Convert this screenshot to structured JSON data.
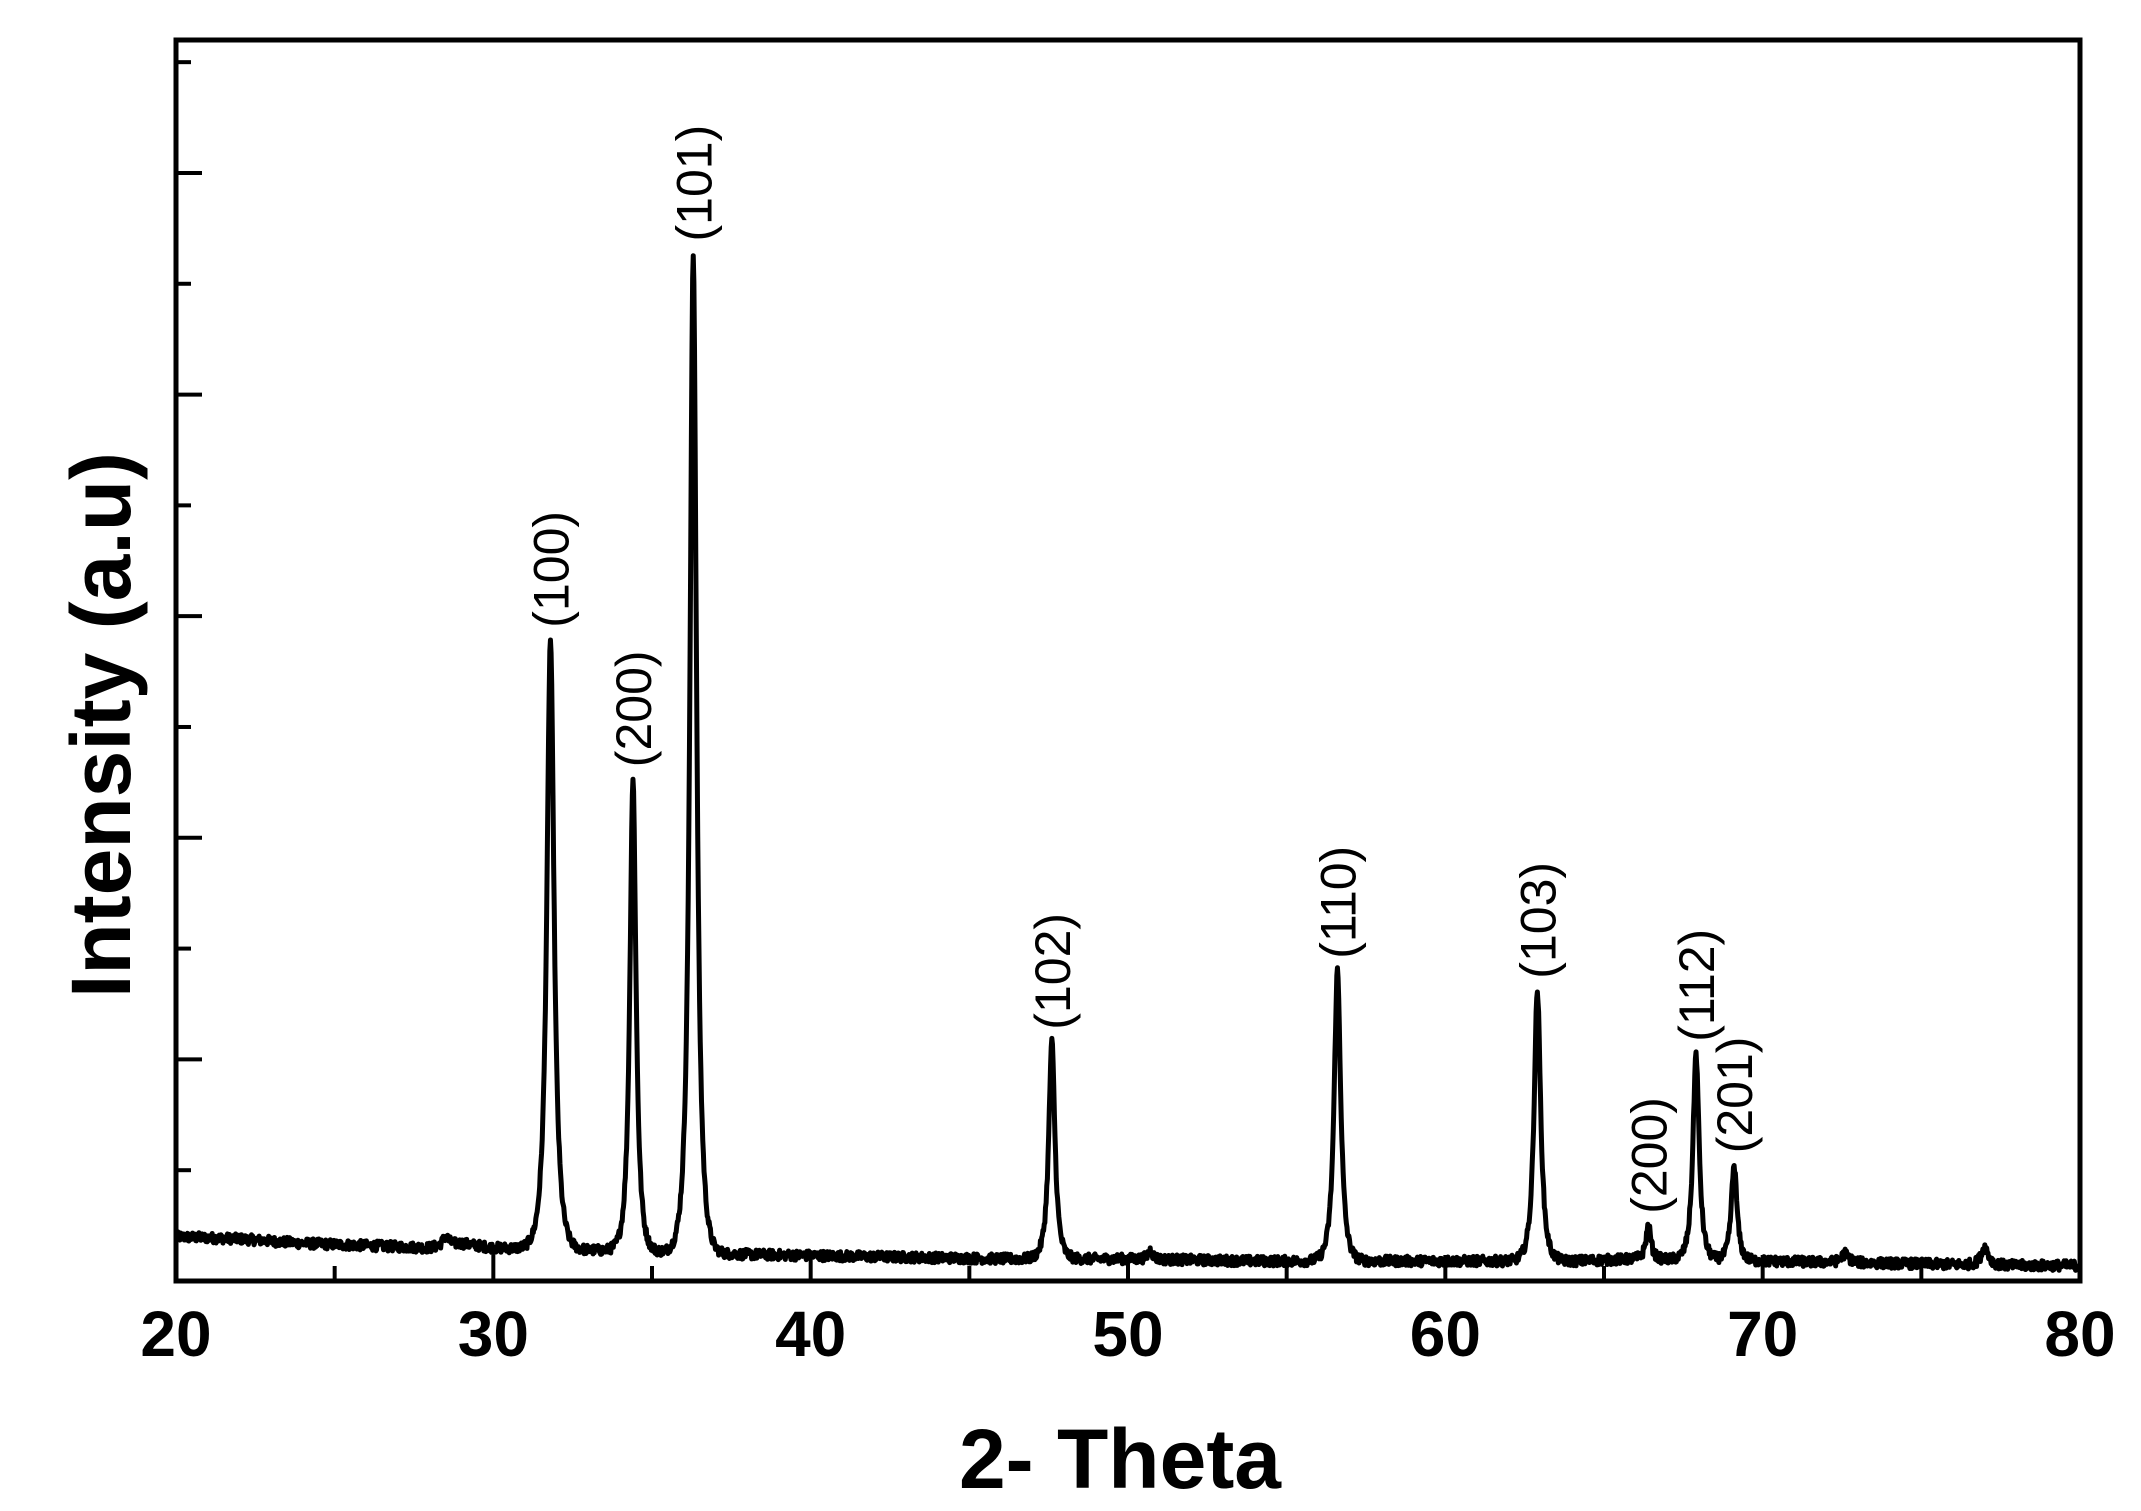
{
  "chart_data": {
    "type": "line",
    "title": "",
    "xlabel": "2- Theta",
    "ylabel": "Intensity (a.u)",
    "xlim": [
      20,
      80
    ],
    "ylim": [
      0,
      560
    ],
    "x_ticks": [
      "20",
      "30",
      "40",
      "50",
      "60",
      "70",
      "80"
    ],
    "y_tick_labels_shown": false,
    "grid": false,
    "legend": "none",
    "line_color": "#000000",
    "baseline": [
      [
        20,
        20
      ],
      [
        22,
        19
      ],
      [
        24,
        17
      ],
      [
        26,
        16
      ],
      [
        28,
        15
      ],
      [
        29,
        17
      ],
      [
        30,
        15
      ],
      [
        33,
        14
      ],
      [
        38,
        12
      ],
      [
        42,
        11
      ],
      [
        46,
        10
      ],
      [
        50,
        10
      ],
      [
        54,
        9
      ],
      [
        60,
        9
      ],
      [
        64,
        9
      ],
      [
        66,
        10
      ],
      [
        70,
        9
      ],
      [
        74,
        8
      ],
      [
        78,
        7
      ],
      [
        80,
        7
      ]
    ],
    "peaks": [
      {
        "label": "(100)",
        "x": 31.8,
        "intensity": 275,
        "width": 0.35
      },
      {
        "label": "(200)",
        "x": 34.4,
        "intensity": 213,
        "width": 0.3
      },
      {
        "label": "(101)",
        "x": 36.3,
        "intensity": 451,
        "width": 0.32
      },
      {
        "label": "(102)",
        "x": 47.6,
        "intensity": 98,
        "width": 0.3
      },
      {
        "label": "(110)",
        "x": 56.6,
        "intensity": 131,
        "width": 0.32
      },
      {
        "label": "(103)",
        "x": 62.9,
        "intensity": 122,
        "width": 0.32
      },
      {
        "label": "(200)",
        "x": 66.4,
        "intensity": 15,
        "width": 0.25
      },
      {
        "label": "(112)",
        "x": 67.9,
        "intensity": 93,
        "width": 0.3
      },
      {
        "label": "(201)",
        "x": 69.1,
        "intensity": 43,
        "width": 0.28
      }
    ],
    "minor_bumps": [
      {
        "x": 28.5,
        "intensity": 4,
        "width": 0.3
      },
      {
        "x": 50.7,
        "intensity": 4,
        "width": 0.25
      },
      {
        "x": 72.6,
        "intensity": 4,
        "width": 0.35
      },
      {
        "x": 77.0,
        "intensity": 8,
        "width": 0.35
      }
    ]
  }
}
